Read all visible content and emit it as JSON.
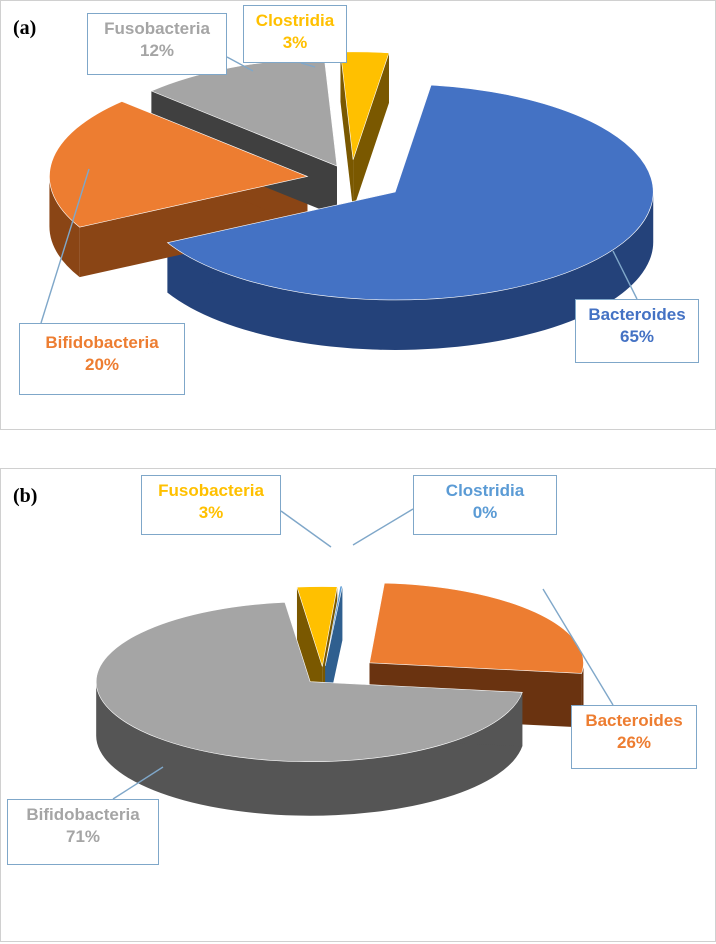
{
  "chart_data": [
    {
      "panel": "(a)",
      "type": "pie",
      "slices": [
        {
          "label": "Bacteroides",
          "value": 65,
          "value_label": "65%",
          "color": "#4472C4",
          "side_color": "#24427a"
        },
        {
          "label": "Bifidobacteria",
          "value": 20,
          "value_label": "20%",
          "color": "#ED7D31",
          "side_color": "#8a4515"
        },
        {
          "label": "Fusobacteria",
          "value": 12,
          "value_label": "12%",
          "color": "#A5A5A5",
          "side_color": "#404040"
        },
        {
          "label": "Clostridia",
          "value": 3,
          "value_label": "3%",
          "color": "#FFC000",
          "side_color": "#7a5800"
        }
      ]
    },
    {
      "panel": "(b)",
      "type": "pie",
      "slices": [
        {
          "label": "Bacteroides",
          "value": 26,
          "value_label": "26%",
          "color": "#ED7D31",
          "side_color": "#6a3310"
        },
        {
          "label": "Bifidobacteria",
          "value": 71,
          "value_label": "71%",
          "color": "#A5A5A5",
          "side_color": "#555555"
        },
        {
          "label": "Fusobacteria",
          "value": 3,
          "value_label": "3%",
          "color": "#FFC000",
          "side_color": "#7a5800"
        },
        {
          "label": "Clostridia",
          "value": 0,
          "value_label": "0%",
          "color": "#5B9BD5",
          "side_color": "#2f5f8f"
        }
      ]
    }
  ]
}
